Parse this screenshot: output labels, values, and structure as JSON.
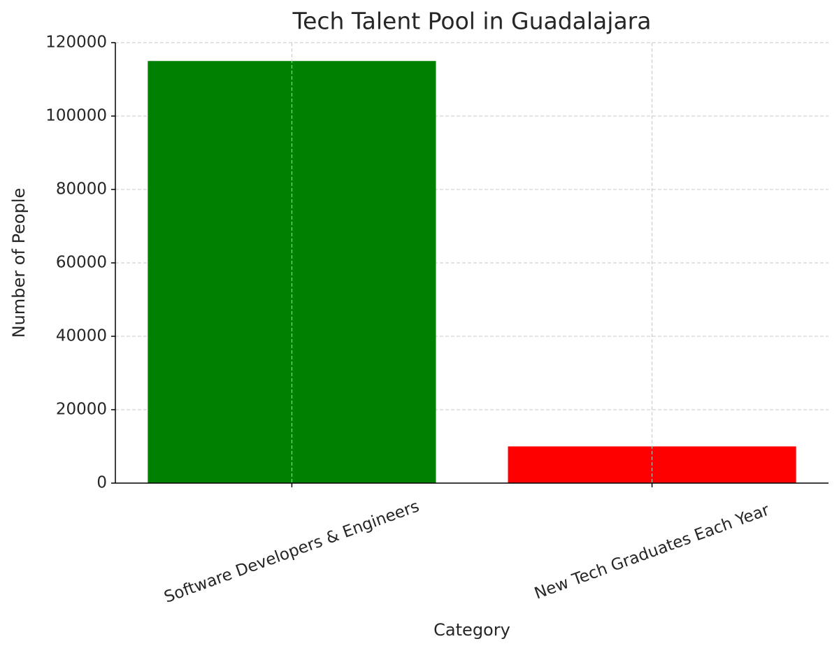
{
  "chart_data": {
    "type": "bar",
    "title": "Tech Talent Pool in Guadalajara",
    "x_label": "Category",
    "y_label": "Number of People",
    "categories": [
      "Software Developers & Engineers",
      "New Tech Graduates Each Year"
    ],
    "values": [
      115000,
      10000
    ],
    "colors": [
      "#008000",
      "#ff0000"
    ],
    "ylim": [
      0,
      120000
    ],
    "yticks": [
      0,
      20000,
      40000,
      60000,
      80000,
      100000,
      120000
    ],
    "grid": true
  }
}
